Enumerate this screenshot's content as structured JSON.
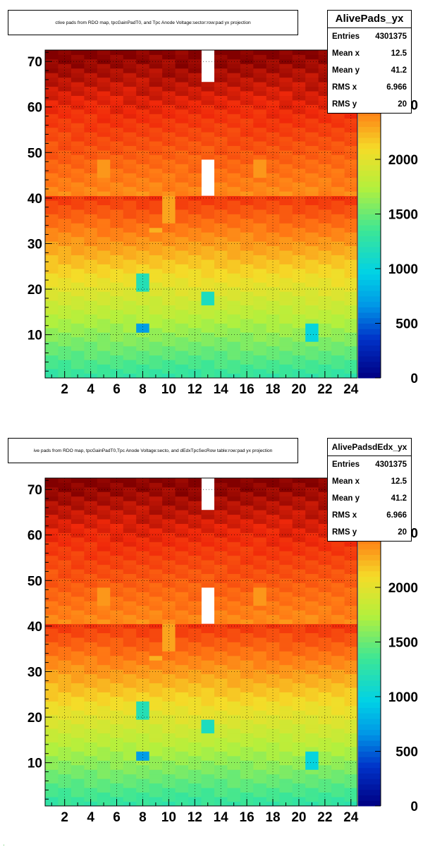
{
  "chart_data": [
    {
      "type": "heatmap",
      "title": "ctive pads from RDO map, tpcGainPadT0,  and Tpc Anode Voltage:sector:row:pad yx projection",
      "stats": {
        "name": "AlivePads_yx",
        "entries_label": "Entries",
        "entries": "4301375",
        "mean_x_label": "Mean x",
        "mean_x": "12.5",
        "mean_y_label": "Mean y",
        "mean_y": "41.2",
        "rms_x_label": "RMS x",
        "rms_x": "6.966",
        "rms_y_label": "RMS y",
        "rms_y": "20"
      },
      "xlabel": "",
      "ylabel": "",
      "xlim": [
        0.5,
        24.5
      ],
      "ylim": [
        0.5,
        72.5
      ],
      "x_ticks": [
        2,
        4,
        6,
        8,
        10,
        12,
        14,
        16,
        18,
        20,
        22,
        24
      ],
      "y_ticks": [
        10,
        20,
        30,
        40,
        50,
        60,
        70
      ],
      "z_range": [
        0,
        3000
      ],
      "z_ticks": [
        0,
        500,
        1000,
        1500,
        2000,
        2500
      ],
      "colormap": "rainbow",
      "grid": true,
      "empty_cells": [
        [
          13,
          66,
          72
        ],
        [
          13,
          41,
          48
        ]
      ],
      "hot_cells": [
        [
          5,
          45,
          48,
          2350
        ],
        [
          17,
          45,
          48,
          2350
        ],
        [
          10,
          35,
          40,
          2300
        ],
        [
          9,
          33,
          33,
          2250
        ],
        [
          8,
          20,
          23,
          1200
        ],
        [
          13,
          17,
          19,
          1150
        ],
        [
          8,
          11,
          12,
          700
        ],
        [
          21,
          9,
          12,
          1000
        ]
      ]
    },
    {
      "type": "heatmap",
      "title": "ive pads from RDO map, tpcGainPadT0,Tpc Anode Voltage:secto, and dEdxTpcSecRow table:row:pad yx projection",
      "stats": {
        "name": "AlivePadsdEdx_yx",
        "entries_label": "Entries",
        "entries": "4301375",
        "mean_x_label": "Mean x",
        "mean_x": "12.5",
        "mean_y_label": "Mean y",
        "mean_y": "41.2",
        "rms_x_label": "RMS x",
        "rms_x": "6.966",
        "rms_y_label": "RMS y",
        "rms_y": "20"
      },
      "xlabel": "",
      "ylabel": "",
      "xlim": [
        0.5,
        24.5
      ],
      "ylim": [
        0.5,
        72.5
      ],
      "x_ticks": [
        2,
        4,
        6,
        8,
        10,
        12,
        14,
        16,
        18,
        20,
        22,
        24
      ],
      "y_ticks": [
        10,
        20,
        30,
        40,
        50,
        60,
        70
      ],
      "z_range": [
        0,
        3000
      ],
      "z_ticks": [
        0,
        500,
        1000,
        1500,
        2000,
        2500
      ],
      "colormap": "rainbow",
      "grid": true,
      "empty_cells": [
        [
          13,
          66,
          72
        ],
        [
          13,
          41,
          48
        ]
      ],
      "hot_cells": [
        [
          5,
          45,
          48,
          2350
        ],
        [
          17,
          45,
          48,
          2350
        ],
        [
          10,
          35,
          40,
          2300
        ],
        [
          9,
          33,
          33,
          2250
        ],
        [
          8,
          20,
          23,
          1200
        ],
        [
          13,
          17,
          19,
          1150
        ],
        [
          8,
          11,
          12,
          700
        ],
        [
          21,
          9,
          12,
          1000
        ]
      ]
    }
  ]
}
